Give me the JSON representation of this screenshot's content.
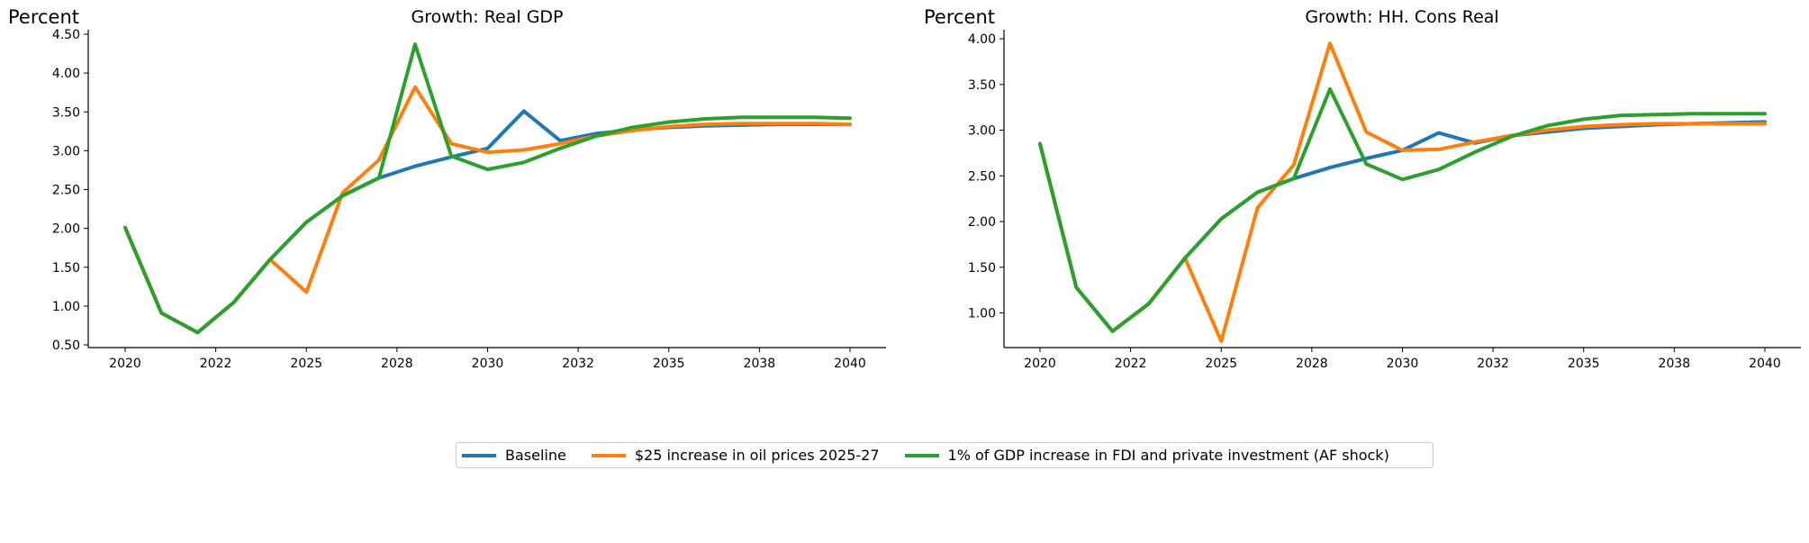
{
  "chart_data": [
    {
      "type": "line",
      "title": "Growth: Real GDP",
      "ylabel": "Percent",
      "xlabel": "",
      "ylim": [
        0.5,
        4.5
      ],
      "yticks": [
        "0.50",
        "1.00",
        "1.50",
        "2.00",
        "2.50",
        "3.00",
        "3.50",
        "4.00",
        "4.50"
      ],
      "xtick_labels": [
        "2020",
        "2022",
        "2025",
        "2028",
        "2030",
        "2032",
        "2035",
        "2038",
        "2040"
      ],
      "x": [
        2020,
        2021,
        2022,
        2023,
        2024,
        2025,
        2026,
        2027,
        2028,
        2029,
        2030,
        2031,
        2032,
        2033,
        2034,
        2035,
        2036,
        2037,
        2038,
        2039,
        2040
      ],
      "series": [
        {
          "name": "Baseline",
          "color": "#1f77b4",
          "values": [
            2.01,
            0.91,
            0.66,
            1.05,
            1.6,
            2.08,
            2.42,
            2.65,
            2.8,
            2.92,
            3.03,
            3.51,
            3.13,
            3.22,
            3.27,
            3.3,
            3.32,
            3.33,
            3.34,
            3.34,
            3.34
          ]
        },
        {
          "name": "$25 increase in oil prices 2025-27",
          "color": "#ff7f0e",
          "values": [
            2.01,
            0.91,
            0.66,
            1.05,
            1.6,
            1.18,
            2.46,
            2.88,
            3.82,
            3.09,
            2.98,
            3.01,
            3.09,
            3.19,
            3.26,
            3.31,
            3.34,
            3.35,
            3.35,
            3.35,
            3.34
          ]
        },
        {
          "name": "1% of GDP increase in FDI and private investment (AF shock)",
          "color": "#2ca02c",
          "values": [
            2.01,
            0.91,
            0.66,
            1.05,
            1.6,
            2.08,
            2.42,
            2.65,
            4.37,
            2.93,
            2.76,
            2.85,
            3.03,
            3.19,
            3.3,
            3.37,
            3.41,
            3.43,
            3.43,
            3.43,
            3.42
          ]
        }
      ]
    },
    {
      "type": "line",
      "title": "Growth: HH. Cons Real",
      "ylabel": "Percent",
      "xlabel": "",
      "ylim": [
        0.65,
        4.05
      ],
      "yticks": [
        "1.00",
        "1.50",
        "2.00",
        "2.50",
        "3.00",
        "3.50",
        "4.00"
      ],
      "xtick_labels": [
        "2020",
        "2022",
        "2025",
        "2028",
        "2030",
        "2032",
        "2035",
        "2038",
        "2040"
      ],
      "x": [
        2020,
        2021,
        2022,
        2023,
        2024,
        2025,
        2026,
        2027,
        2028,
        2029,
        2030,
        2031,
        2032,
        2033,
        2034,
        2035,
        2036,
        2037,
        2038,
        2039,
        2040
      ],
      "series": [
        {
          "name": "Baseline",
          "color": "#1f77b4",
          "values": [
            2.85,
            1.28,
            0.8,
            1.1,
            1.6,
            2.03,
            2.32,
            2.47,
            2.59,
            2.69,
            2.78,
            2.97,
            2.86,
            2.94,
            2.98,
            3.02,
            3.04,
            3.06,
            3.07,
            3.08,
            3.09
          ]
        },
        {
          "name": "$25 increase in oil prices 2025-27",
          "color": "#ff7f0e",
          "values": [
            2.85,
            1.28,
            0.8,
            1.1,
            1.6,
            0.69,
            2.15,
            2.62,
            3.95,
            2.98,
            2.78,
            2.79,
            2.87,
            2.94,
            3.0,
            3.04,
            3.06,
            3.07,
            3.07,
            3.07,
            3.07
          ]
        },
        {
          "name": "1% of GDP increase in FDI and private investment (AF shock)",
          "color": "#2ca02c",
          "values": [
            2.85,
            1.28,
            0.8,
            1.1,
            1.6,
            2.03,
            2.32,
            2.47,
            3.45,
            2.63,
            2.46,
            2.57,
            2.76,
            2.93,
            3.05,
            3.12,
            3.16,
            3.17,
            3.18,
            3.18,
            3.18
          ]
        }
      ]
    }
  ],
  "legend": {
    "position": "bottom-center",
    "items": [
      {
        "label": "Baseline",
        "color": "#1f77b4"
      },
      {
        "label": "$25 increase in oil prices 2025-27",
        "color": "#ff7f0e"
      },
      {
        "label": "1% of GDP increase in FDI and private investment (AF shock)",
        "color": "#2ca02c"
      }
    ]
  }
}
